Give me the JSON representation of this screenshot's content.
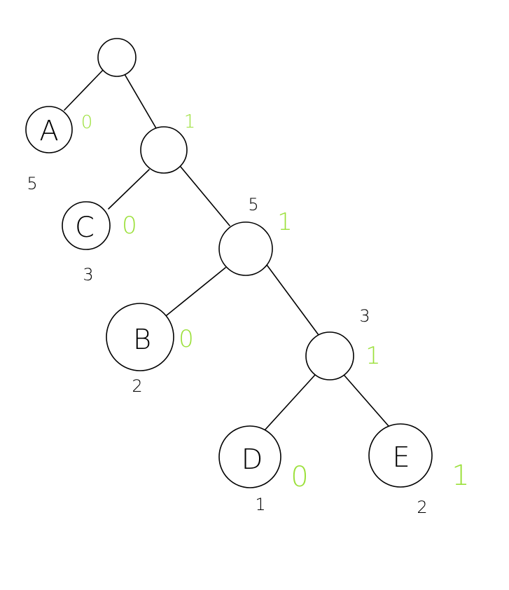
{
  "colors": {
    "ink": "#000000",
    "code": "#9be03a"
  },
  "nodes": [
    {
      "id": "root",
      "letter": ""
    },
    {
      "id": "A",
      "letter": "A",
      "weight": "5",
      "code": "0"
    },
    {
      "id": "n1",
      "letter": "",
      "weight": "",
      "code": "1"
    },
    {
      "id": "C",
      "letter": "C",
      "weight": "3",
      "code": "0"
    },
    {
      "id": "n2",
      "letter": "",
      "weight": "5",
      "code": "1"
    },
    {
      "id": "B",
      "letter": "B",
      "weight": "2",
      "code": "0"
    },
    {
      "id": "n3",
      "letter": "",
      "weight": "3",
      "code": "1"
    },
    {
      "id": "D",
      "letter": "D",
      "weight": "1",
      "code": "0"
    },
    {
      "id": "E",
      "letter": "E",
      "weight": "2",
      "code": "1"
    }
  ]
}
